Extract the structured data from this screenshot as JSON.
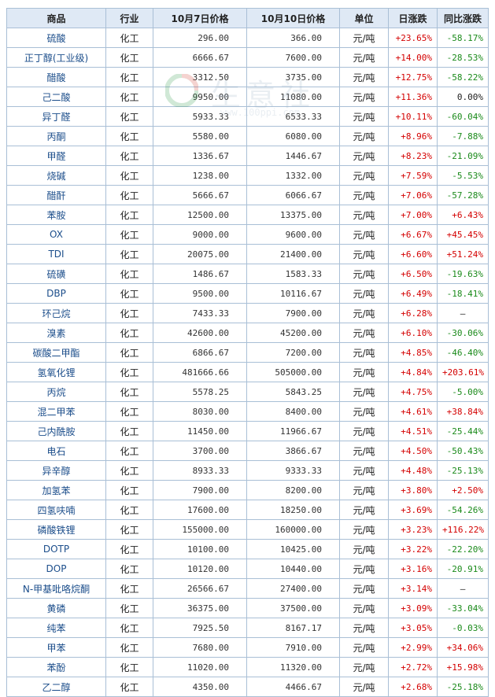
{
  "headers": [
    "商品",
    "行业",
    "10月7日价格",
    "10月10日价格",
    "单位",
    "日涨跌",
    "同比涨跌"
  ],
  "watermark": {
    "text": "生意社",
    "url": "www.100ppi.com"
  },
  "rows": [
    {
      "name": "硫酸",
      "industry": "化工",
      "p1": "296.00",
      "p2": "366.00",
      "unit": "元/吨",
      "day": "+23.65%",
      "yoy": "-58.17%"
    },
    {
      "name": "正丁醇(工业级)",
      "industry": "化工",
      "p1": "6666.67",
      "p2": "7600.00",
      "unit": "元/吨",
      "day": "+14.00%",
      "yoy": "-28.53%"
    },
    {
      "name": "醋酸",
      "industry": "化工",
      "p1": "3312.50",
      "p2": "3735.00",
      "unit": "元/吨",
      "day": "+12.75%",
      "yoy": "-58.22%"
    },
    {
      "name": "己二酸",
      "industry": "化工",
      "p1": "9950.00",
      "p2": "11080.00",
      "unit": "元/吨",
      "day": "+11.36%",
      "yoy": "0.00%"
    },
    {
      "name": "异丁醛",
      "industry": "化工",
      "p1": "5933.33",
      "p2": "6533.33",
      "unit": "元/吨",
      "day": "+10.11%",
      "yoy": "-60.04%"
    },
    {
      "name": "丙酮",
      "industry": "化工",
      "p1": "5580.00",
      "p2": "6080.00",
      "unit": "元/吨",
      "day": "+8.96%",
      "yoy": "-7.88%"
    },
    {
      "name": "甲醛",
      "industry": "化工",
      "p1": "1336.67",
      "p2": "1446.67",
      "unit": "元/吨",
      "day": "+8.23%",
      "yoy": "-21.09%"
    },
    {
      "name": "烧碱",
      "industry": "化工",
      "p1": "1238.00",
      "p2": "1332.00",
      "unit": "元/吨",
      "day": "+7.59%",
      "yoy": "-5.53%"
    },
    {
      "name": "醋酐",
      "industry": "化工",
      "p1": "5666.67",
      "p2": "6066.67",
      "unit": "元/吨",
      "day": "+7.06%",
      "yoy": "-57.28%"
    },
    {
      "name": "苯胺",
      "industry": "化工",
      "p1": "12500.00",
      "p2": "13375.00",
      "unit": "元/吨",
      "day": "+7.00%",
      "yoy": "+6.43%"
    },
    {
      "name": "OX",
      "industry": "化工",
      "p1": "9000.00",
      "p2": "9600.00",
      "unit": "元/吨",
      "day": "+6.67%",
      "yoy": "+45.45%"
    },
    {
      "name": "TDI",
      "industry": "化工",
      "p1": "20075.00",
      "p2": "21400.00",
      "unit": "元/吨",
      "day": "+6.60%",
      "yoy": "+51.24%"
    },
    {
      "name": "硫磺",
      "industry": "化工",
      "p1": "1486.67",
      "p2": "1583.33",
      "unit": "元/吨",
      "day": "+6.50%",
      "yoy": "-19.63%"
    },
    {
      "name": "DBP",
      "industry": "化工",
      "p1": "9500.00",
      "p2": "10116.67",
      "unit": "元/吨",
      "day": "+6.49%",
      "yoy": "-18.41%"
    },
    {
      "name": "环己烷",
      "industry": "化工",
      "p1": "7433.33",
      "p2": "7900.00",
      "unit": "元/吨",
      "day": "+6.28%",
      "yoy": "—"
    },
    {
      "name": "溴素",
      "industry": "化工",
      "p1": "42600.00",
      "p2": "45200.00",
      "unit": "元/吨",
      "day": "+6.10%",
      "yoy": "-30.06%"
    },
    {
      "name": "碳酸二甲酯",
      "industry": "化工",
      "p1": "6866.67",
      "p2": "7200.00",
      "unit": "元/吨",
      "day": "+4.85%",
      "yoy": "-46.40%"
    },
    {
      "name": "氢氧化锂",
      "industry": "化工",
      "p1": "481666.66",
      "p2": "505000.00",
      "unit": "元/吨",
      "day": "+4.84%",
      "yoy": "+203.61%"
    },
    {
      "name": "丙烷",
      "industry": "化工",
      "p1": "5578.25",
      "p2": "5843.25",
      "unit": "元/吨",
      "day": "+4.75%",
      "yoy": "-5.00%"
    },
    {
      "name": "混二甲苯",
      "industry": "化工",
      "p1": "8030.00",
      "p2": "8400.00",
      "unit": "元/吨",
      "day": "+4.61%",
      "yoy": "+38.84%"
    },
    {
      "name": "己内酰胺",
      "industry": "化工",
      "p1": "11450.00",
      "p2": "11966.67",
      "unit": "元/吨",
      "day": "+4.51%",
      "yoy": "-25.44%"
    },
    {
      "name": "电石",
      "industry": "化工",
      "p1": "3700.00",
      "p2": "3866.67",
      "unit": "元/吨",
      "day": "+4.50%",
      "yoy": "-50.43%"
    },
    {
      "name": "异辛醇",
      "industry": "化工",
      "p1": "8933.33",
      "p2": "9333.33",
      "unit": "元/吨",
      "day": "+4.48%",
      "yoy": "-25.13%"
    },
    {
      "name": "加氢苯",
      "industry": "化工",
      "p1": "7900.00",
      "p2": "8200.00",
      "unit": "元/吨",
      "day": "+3.80%",
      "yoy": "+2.50%"
    },
    {
      "name": "四氢呋喃",
      "industry": "化工",
      "p1": "17600.00",
      "p2": "18250.00",
      "unit": "元/吨",
      "day": "+3.69%",
      "yoy": "-54.26%"
    },
    {
      "name": "磷酸铁锂",
      "industry": "化工",
      "p1": "155000.00",
      "p2": "160000.00",
      "unit": "元/吨",
      "day": "+3.23%",
      "yoy": "+116.22%"
    },
    {
      "name": "DOTP",
      "industry": "化工",
      "p1": "10100.00",
      "p2": "10425.00",
      "unit": "元/吨",
      "day": "+3.22%",
      "yoy": "-22.20%"
    },
    {
      "name": "DOP",
      "industry": "化工",
      "p1": "10120.00",
      "p2": "10440.00",
      "unit": "元/吨",
      "day": "+3.16%",
      "yoy": "-20.91%"
    },
    {
      "name": "N-甲基吡咯烷酮",
      "industry": "化工",
      "p1": "26566.67",
      "p2": "27400.00",
      "unit": "元/吨",
      "day": "+3.14%",
      "yoy": "—"
    },
    {
      "name": "黄磷",
      "industry": "化工",
      "p1": "36375.00",
      "p2": "37500.00",
      "unit": "元/吨",
      "day": "+3.09%",
      "yoy": "-33.04%"
    },
    {
      "name": "纯苯",
      "industry": "化工",
      "p1": "7925.50",
      "p2": "8167.17",
      "unit": "元/吨",
      "day": "+3.05%",
      "yoy": "-0.03%"
    },
    {
      "name": "甲苯",
      "industry": "化工",
      "p1": "7680.00",
      "p2": "7910.00",
      "unit": "元/吨",
      "day": "+2.99%",
      "yoy": "+34.06%"
    },
    {
      "name": "苯酚",
      "industry": "化工",
      "p1": "11020.00",
      "p2": "11320.00",
      "unit": "元/吨",
      "day": "+2.72%",
      "yoy": "+15.98%"
    },
    {
      "name": "乙二醇",
      "industry": "化工",
      "p1": "4350.00",
      "p2": "4466.67",
      "unit": "元/吨",
      "day": "+2.68%",
      "yoy": "-25.18%"
    }
  ]
}
